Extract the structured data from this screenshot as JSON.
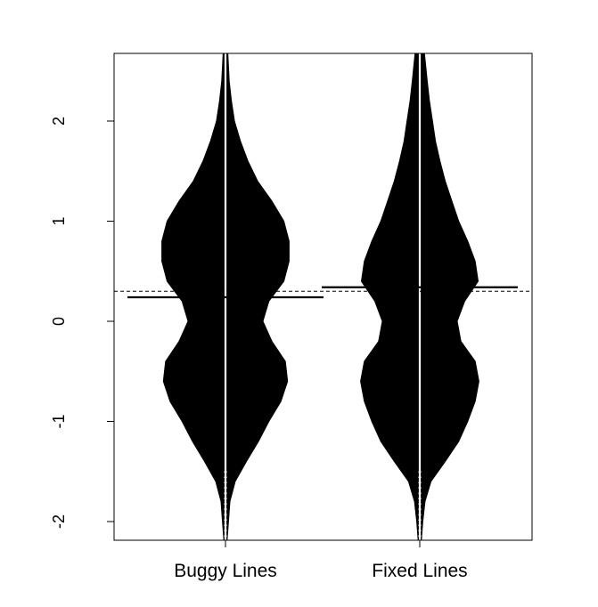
{
  "chart_data": {
    "type": "beanplot",
    "categories": [
      "Buggy Lines",
      "Fixed Lines"
    ],
    "ylim": [
      -2.2,
      2.7
    ],
    "yticks": [
      -2,
      -1,
      0,
      1,
      2
    ],
    "ytick_labels": [
      "-2",
      "-1",
      "0",
      "1",
      "2"
    ],
    "overall_mean": 0.3,
    "grid": false,
    "legend": "none",
    "series": [
      {
        "group_mean": 0.24,
        "density_profile": [
          [
            -2.2,
            0.02
          ],
          [
            -2.0,
            0.04
          ],
          [
            -1.8,
            0.06
          ],
          [
            -1.6,
            0.13
          ],
          [
            -1.4,
            0.28
          ],
          [
            -1.2,
            0.44
          ],
          [
            -1.0,
            0.58
          ],
          [
            -0.8,
            0.74
          ],
          [
            -0.6,
            0.83
          ],
          [
            -0.4,
            0.8
          ],
          [
            -0.2,
            0.62
          ],
          [
            0.0,
            0.5
          ],
          [
            0.2,
            0.58
          ],
          [
            0.4,
            0.78
          ],
          [
            0.6,
            0.85
          ],
          [
            0.8,
            0.85
          ],
          [
            1.0,
            0.78
          ],
          [
            1.2,
            0.62
          ],
          [
            1.4,
            0.43
          ],
          [
            1.6,
            0.3
          ],
          [
            1.8,
            0.2
          ],
          [
            2.0,
            0.12
          ],
          [
            2.2,
            0.08
          ],
          [
            2.4,
            0.05
          ],
          [
            2.7,
            0.03
          ]
        ]
      },
      {
        "group_mean": 0.34,
        "density_profile": [
          [
            -2.2,
            0.02
          ],
          [
            -2.0,
            0.04
          ],
          [
            -1.8,
            0.07
          ],
          [
            -1.6,
            0.15
          ],
          [
            -1.4,
            0.34
          ],
          [
            -1.2,
            0.52
          ],
          [
            -1.0,
            0.64
          ],
          [
            -0.8,
            0.74
          ],
          [
            -0.6,
            0.79
          ],
          [
            -0.4,
            0.74
          ],
          [
            -0.2,
            0.55
          ],
          [
            0.0,
            0.5
          ],
          [
            0.2,
            0.6
          ],
          [
            0.4,
            0.78
          ],
          [
            0.6,
            0.74
          ],
          [
            0.8,
            0.64
          ],
          [
            1.0,
            0.52
          ],
          [
            1.2,
            0.43
          ],
          [
            1.4,
            0.34
          ],
          [
            1.6,
            0.27
          ],
          [
            1.8,
            0.21
          ],
          [
            2.0,
            0.17
          ],
          [
            2.2,
            0.13
          ],
          [
            2.4,
            0.1
          ],
          [
            2.7,
            0.06
          ]
        ]
      }
    ]
  }
}
